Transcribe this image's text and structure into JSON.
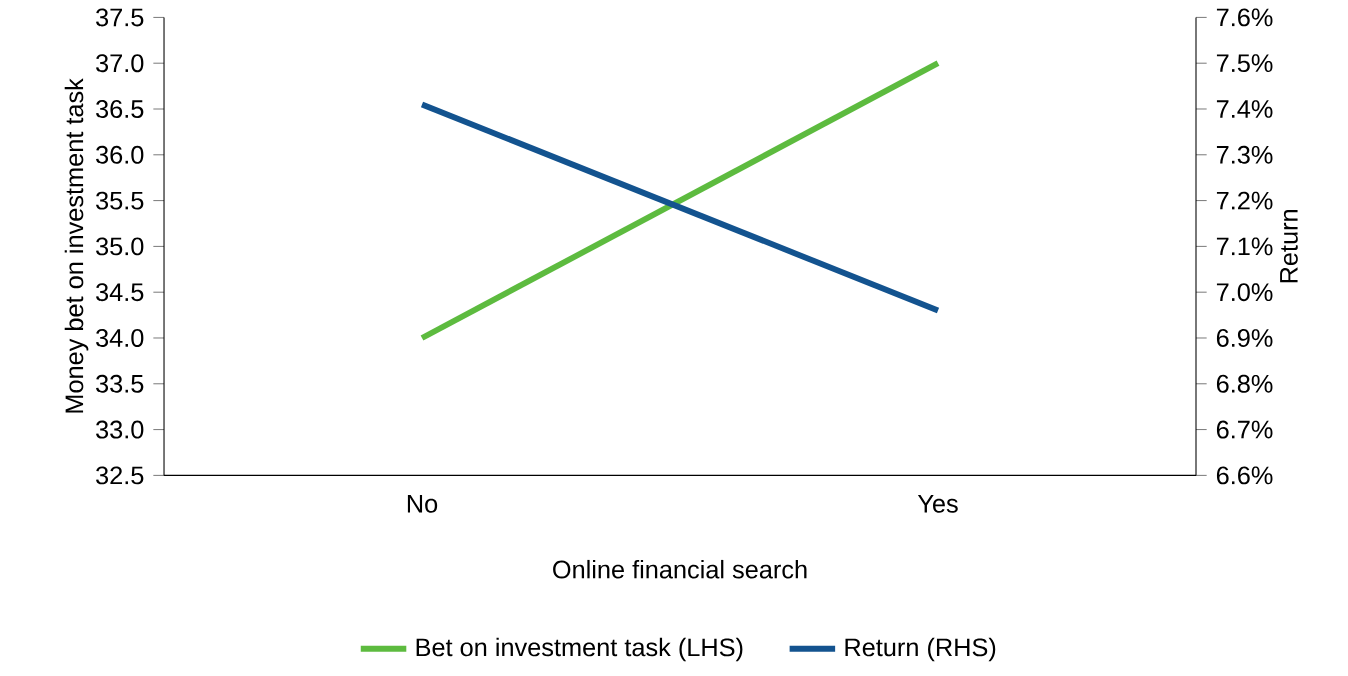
{
  "chart_data": {
    "type": "line",
    "xlabel": "Online financial search",
    "ylabel": "Money bet on investment task",
    "y2label": "Return",
    "categories": [
      "No",
      "Yes"
    ],
    "series": [
      {
        "name": "Bet on investment task (LHS)",
        "color": "#5dbb3f",
        "values": [
          34.0,
          37.0
        ]
      },
      {
        "name": "Return (RHS)",
        "color": "#13538f",
        "values": [
          7.41,
          6.96
        ],
        "axis": "y2"
      }
    ],
    "ylim": [
      32.5,
      37.5
    ],
    "yticks": [
      {
        "value": 32.5,
        "label": "32.5"
      },
      {
        "value": 33.0,
        "label": "33.0"
      },
      {
        "value": 33.5,
        "label": "33.5"
      },
      {
        "value": 34.0,
        "label": "34.0"
      },
      {
        "value": 34.5,
        "label": "34.5"
      },
      {
        "value": 35.0,
        "label": "35.0"
      },
      {
        "value": 35.5,
        "label": "35.5"
      },
      {
        "value": 36.0,
        "label": "36.0"
      },
      {
        "value": 36.5,
        "label": "36.5"
      },
      {
        "value": 37.0,
        "label": "37.0"
      },
      {
        "value": 37.5,
        "label": "37.5"
      }
    ],
    "y2lim": [
      6.6,
      7.6
    ],
    "y2ticks": [
      {
        "value": 6.6,
        "label": "6.6%"
      },
      {
        "value": 6.7,
        "label": "6.7%"
      },
      {
        "value": 6.8,
        "label": "6.8%"
      },
      {
        "value": 6.9,
        "label": "6.9%"
      },
      {
        "value": 7.0,
        "label": "7.0%"
      },
      {
        "value": 7.1,
        "label": "7.1%"
      },
      {
        "value": 7.2,
        "label": "7.2%"
      },
      {
        "value": 7.3,
        "label": "7.3%"
      },
      {
        "value": 7.4,
        "label": "7.4%"
      },
      {
        "value": 7.5,
        "label": "7.5%"
      },
      {
        "value": 7.6,
        "label": "7.6%"
      }
    ],
    "legend": "bottom",
    "grid": false,
    "marker": "none",
    "line_style": "solid"
  }
}
